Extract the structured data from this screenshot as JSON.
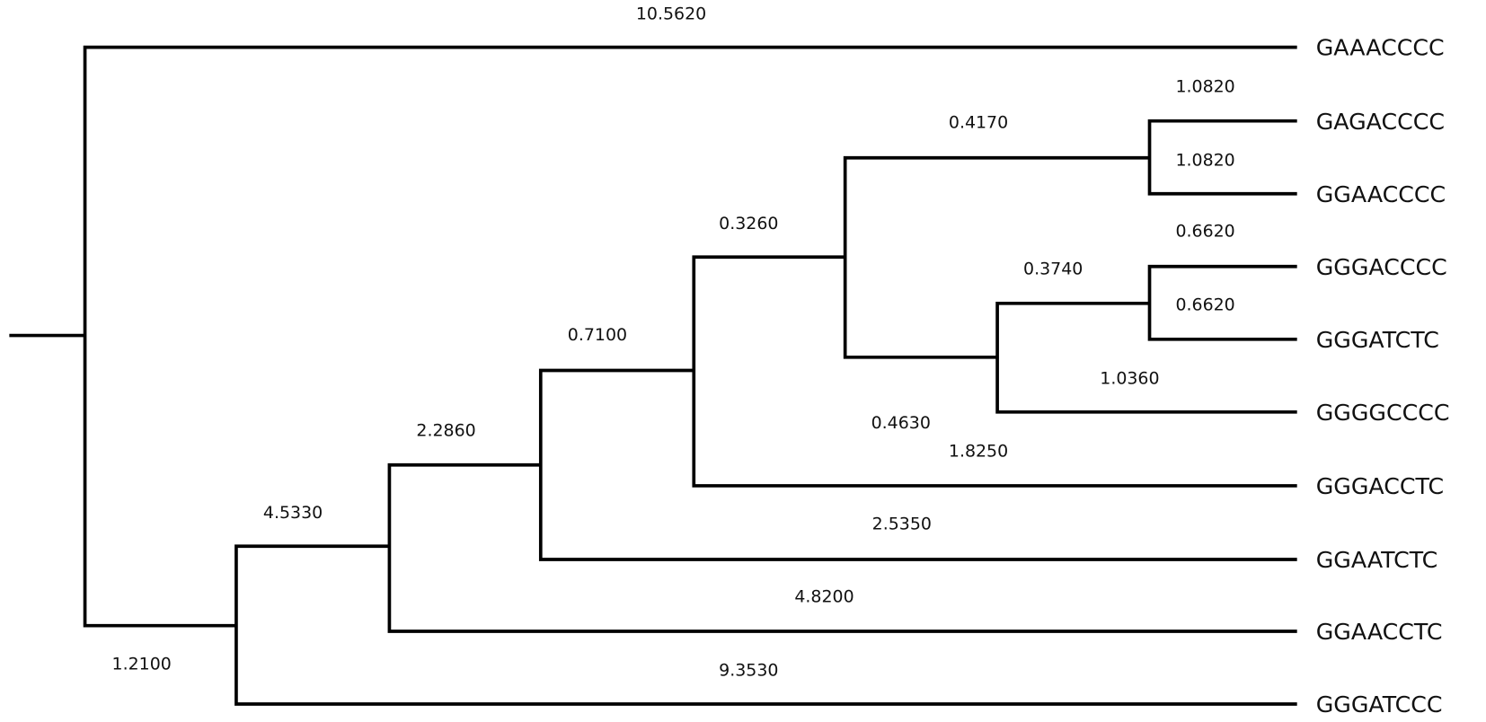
{
  "leaves": [
    "GAAACCCC",
    "GAGACCCC",
    "GGAACCCC",
    "GGGACCCC",
    "GGGATCTC",
    "GGGGCCCC",
    "GGGACCTC",
    "GGAATCTC",
    "GGAACCTC",
    "GGGATCCC"
  ],
  "branch_labels": [
    "10.5620",
    "1.0820",
    "1.0820",
    "0.4170",
    "0.3260",
    "0.6620",
    "0.3740",
    "0.6620",
    "0.7100",
    "1.0360",
    "2.2860",
    "0.4630",
    "1.8250",
    "4.5330",
    "2.5350",
    "4.8200",
    "9.3530",
    "1.2100"
  ]
}
